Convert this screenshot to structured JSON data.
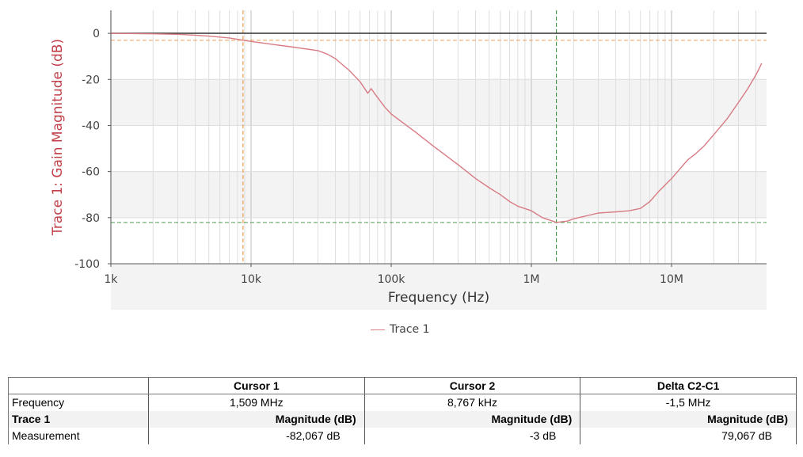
{
  "chart_data": {
    "type": "line",
    "xscale": "log",
    "xlabel": "Frequency (Hz)",
    "ylabel": "Trace 1: Gain Magnitude (dB)",
    "xlim": [
      1000,
      45000000
    ],
    "ylim": [
      -100,
      10
    ],
    "x_ticks": [
      {
        "value": 1000,
        "label": "1k"
      },
      {
        "value": 10000,
        "label": "10k"
      },
      {
        "value": 100000,
        "label": "100k"
      },
      {
        "value": 1000000,
        "label": "1M"
      },
      {
        "value": 10000000,
        "label": "10M"
      }
    ],
    "y_ticks": [
      0,
      -20,
      -40,
      -60,
      -80,
      -100
    ],
    "grid": true,
    "legend_position": "bottom-center",
    "series": [
      {
        "name": "Trace 1",
        "color": "#d87b84",
        "points": [
          [
            1000,
            0
          ],
          [
            2000,
            -0.2
          ],
          [
            3000,
            -0.4
          ],
          [
            4000,
            -0.8
          ],
          [
            5000,
            -1.2
          ],
          [
            7000,
            -2.0
          ],
          [
            8767,
            -3.0
          ],
          [
            10000,
            -3.5
          ],
          [
            15000,
            -5.0
          ],
          [
            20000,
            -6.0
          ],
          [
            30000,
            -7.5
          ],
          [
            35000,
            -9.0
          ],
          [
            40000,
            -11.0
          ],
          [
            50000,
            -16.0
          ],
          [
            60000,
            -21.0
          ],
          [
            68000,
            -26.0
          ],
          [
            72000,
            -24.0
          ],
          [
            78000,
            -27.0
          ],
          [
            90000,
            -32.0
          ],
          [
            100000,
            -35.0
          ],
          [
            150000,
            -43.0
          ],
          [
            200000,
            -49.0
          ],
          [
            300000,
            -57.0
          ],
          [
            400000,
            -63.0
          ],
          [
            500000,
            -67.0
          ],
          [
            600000,
            -70.0
          ],
          [
            700000,
            -73.0
          ],
          [
            800000,
            -75.0
          ],
          [
            1000000,
            -77.0
          ],
          [
            1200000,
            -80.0
          ],
          [
            1509000,
            -82.067
          ],
          [
            1800000,
            -81.5
          ],
          [
            2000000,
            -80.5
          ],
          [
            3000000,
            -78.0
          ],
          [
            4000000,
            -77.5
          ],
          [
            5000000,
            -77.0
          ],
          [
            6000000,
            -76.0
          ],
          [
            7000000,
            -73.0
          ],
          [
            8000000,
            -69.0
          ],
          [
            10000000,
            -63.0
          ],
          [
            13000000,
            -55.0
          ],
          [
            15000000,
            -52.0
          ],
          [
            17000000,
            -49.0
          ],
          [
            20000000,
            -44.0
          ],
          [
            25000000,
            -37.0
          ],
          [
            30000000,
            -30.0
          ],
          [
            35000000,
            -24.0
          ],
          [
            40000000,
            -18.0
          ],
          [
            44000000,
            -13.0
          ]
        ]
      }
    ],
    "cursors": [
      {
        "name": "Cursor 1",
        "frequency": 1509000,
        "magnitude": -82.067,
        "color": "#2e8b2e"
      },
      {
        "name": "Cursor 2",
        "frequency": 8767,
        "magnitude": -3,
        "color": "#e8903a"
      }
    ]
  },
  "legend": {
    "label": "Trace 1",
    "color": "#d87b84"
  },
  "table": {
    "headers": [
      "",
      "Cursor 1",
      "Cursor 2",
      "Delta C2-C1"
    ],
    "rows": [
      [
        "Frequency",
        "1,509 MHz",
        "8,767 kHz",
        "-1,5 MHz"
      ],
      [
        "Trace 1",
        "Magnitude (dB)",
        "Magnitude (dB)",
        "Magnitude (dB)"
      ],
      [
        "Measurement",
        "-82,067 dB",
        "-3 dB",
        "79,067 dB"
      ]
    ]
  }
}
